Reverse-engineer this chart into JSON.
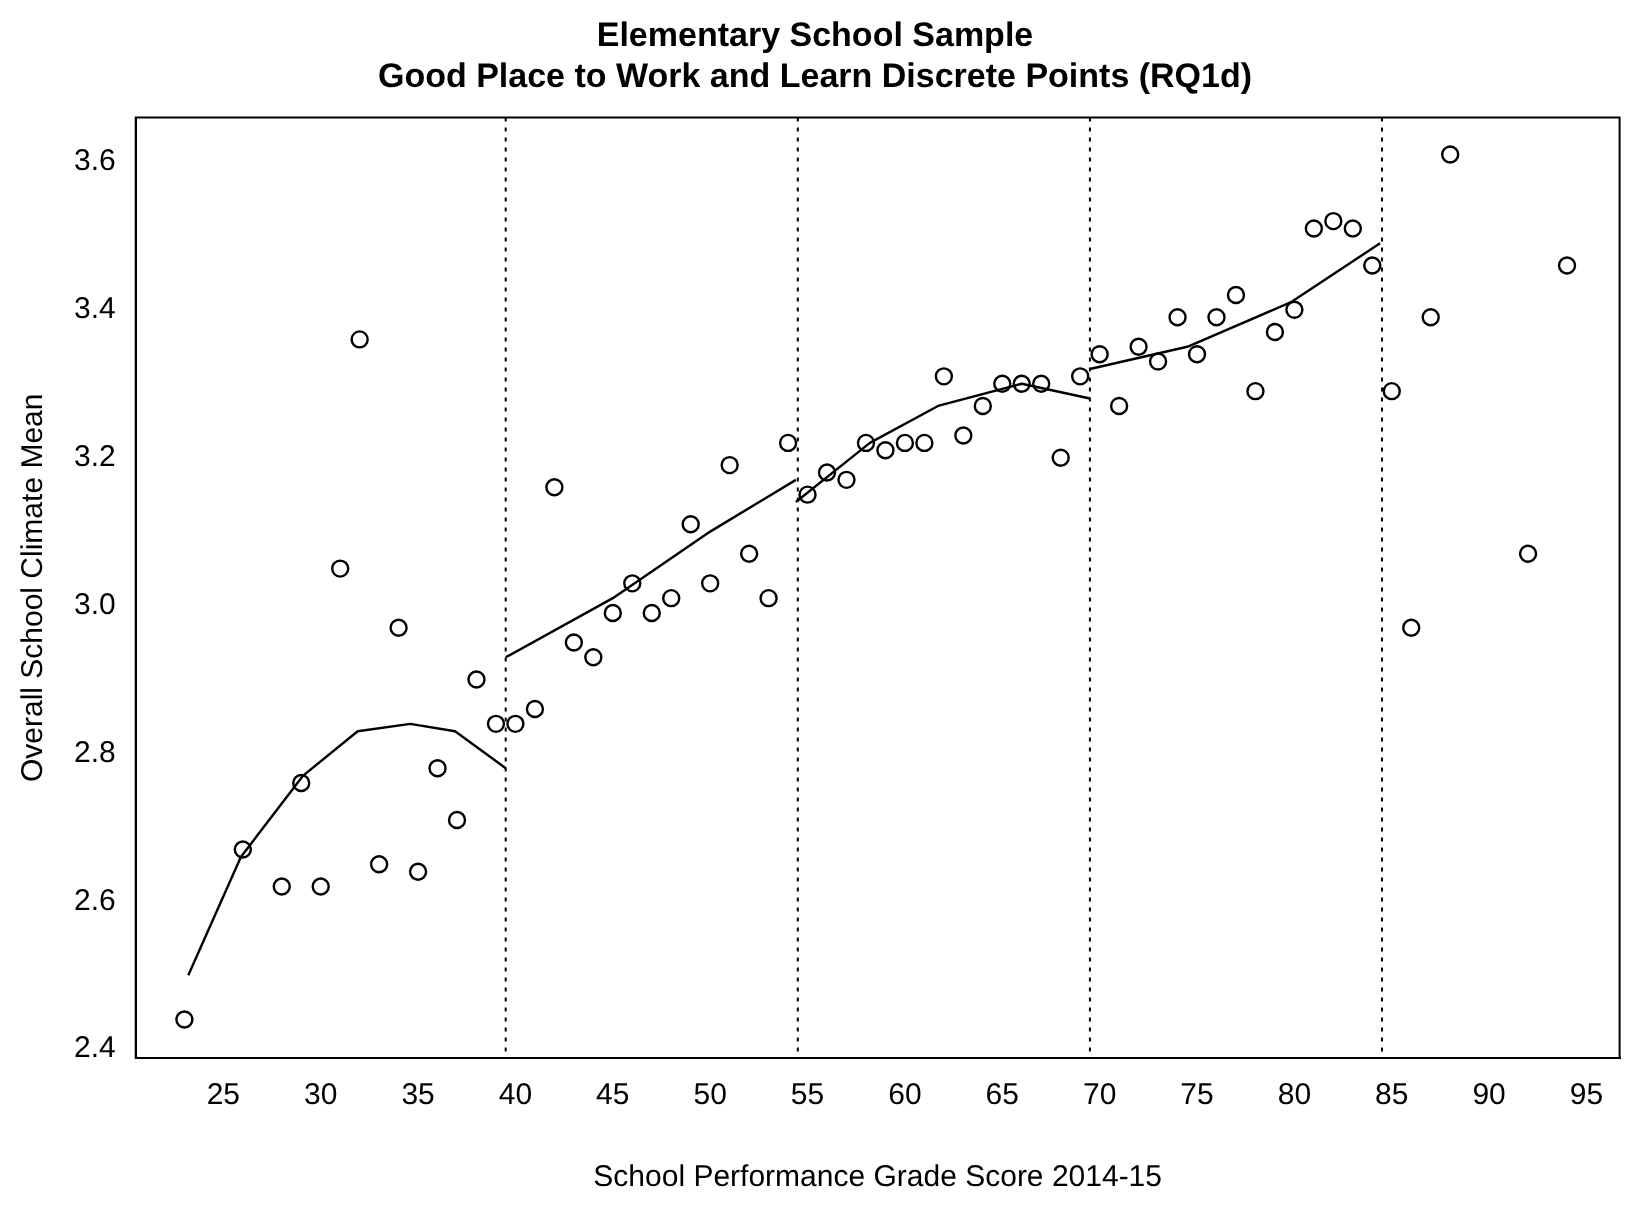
{
  "chart_data": {
    "type": "scatter",
    "title": "Elementary School Sample\nGood Place to Work and Learn Discrete Points (RQ1d)",
    "xlabel": "School Performance Grade Score 2014-15",
    "ylabel": "Overall School Climate Mean",
    "xlim": [
      20.5,
      96.7
    ],
    "ylim": [
      2.388,
      3.66
    ],
    "xticks": [
      25,
      30,
      35,
      40,
      45,
      50,
      55,
      60,
      65,
      70,
      75,
      80,
      85,
      90,
      95
    ],
    "yticks": [
      {
        "value": 2.4,
        "label": "2.4"
      },
      {
        "value": 2.6,
        "label": "2.6"
      },
      {
        "value": 2.8,
        "label": "2.8"
      },
      {
        "value": 3.0,
        "label": "3.0"
      },
      {
        "value": 3.2,
        "label": "3.2"
      },
      {
        "value": 3.4,
        "label": "3.4"
      },
      {
        "value": 3.6,
        "label": "3.6"
      }
    ],
    "grid": false,
    "legend": false,
    "marker": "circle",
    "series": [
      {
        "type": "scatter",
        "color": "#000000",
        "x": [
          23,
          26,
          28,
          29,
          30,
          31,
          32,
          33,
          34,
          35,
          36,
          37,
          38,
          39,
          40,
          41,
          42,
          43,
          44,
          45,
          46,
          47,
          48,
          49,
          50,
          51,
          52,
          53,
          54,
          55,
          56,
          57,
          58,
          59,
          60,
          61,
          62,
          63,
          64,
          65,
          66,
          67,
          68,
          69,
          70,
          71,
          72,
          73,
          74,
          75,
          76,
          77,
          78,
          79,
          80,
          81,
          82,
          83,
          84,
          85,
          86,
          87,
          88,
          92,
          94
        ],
        "values": [
          2.44,
          2.67,
          2.62,
          2.76,
          2.62,
          3.05,
          3.36,
          2.65,
          2.97,
          2.64,
          2.78,
          2.71,
          2.9,
          2.84,
          2.84,
          2.86,
          3.16,
          2.95,
          2.93,
          2.99,
          3.03,
          2.99,
          3.01,
          3.11,
          3.03,
          3.19,
          3.07,
          3.01,
          3.22,
          3.15,
          3.18,
          3.17,
          3.22,
          3.21,
          3.22,
          3.22,
          3.31,
          3.23,
          3.27,
          3.3,
          3.3,
          3.3,
          3.2,
          3.31,
          3.34,
          3.27,
          3.35,
          3.33,
          3.39,
          3.34,
          3.39,
          3.42,
          3.29,
          3.37,
          3.4,
          3.51,
          3.52,
          3.51,
          3.46,
          3.29,
          2.97,
          3.39,
          3.61,
          3.07,
          3.46
        ]
      },
      {
        "type": "line",
        "color": "#000000",
        "marker": "none",
        "x": [
          23.2,
          25.9,
          29.1,
          31.9,
          34.6,
          36.9,
          39.5
        ],
        "values": [
          2.5,
          2.66,
          2.77,
          2.83,
          2.84,
          2.83,
          2.78
        ]
      },
      {
        "type": "line",
        "color": "#000000",
        "marker": "none",
        "x": [
          39.5,
          45,
          50,
          54.4
        ],
        "values": [
          2.93,
          3.01,
          3.1,
          3.17
        ]
      },
      {
        "type": "line",
        "color": "#000000",
        "marker": "none",
        "x": [
          54.4,
          58.2,
          61.7,
          66,
          69.5
        ],
        "values": [
          3.14,
          3.22,
          3.27,
          3.3,
          3.28
        ]
      },
      {
        "type": "line",
        "color": "#000000",
        "marker": "none",
        "x": [
          69.5,
          74.5,
          79.8,
          84.4
        ],
        "values": [
          3.32,
          3.35,
          3.41,
          3.49
        ]
      }
    ],
    "ref_lines": [
      {
        "axis": "x",
        "value": 39.5,
        "color": "#000000",
        "line_style": "dotted"
      },
      {
        "axis": "x",
        "value": 54.5,
        "color": "#000000",
        "line_style": "dotted"
      },
      {
        "axis": "x",
        "value": 69.5,
        "color": "#000000",
        "line_style": "dotted"
      },
      {
        "axis": "x",
        "value": 84.5,
        "color": "#000000",
        "line_style": "dotted"
      }
    ]
  }
}
